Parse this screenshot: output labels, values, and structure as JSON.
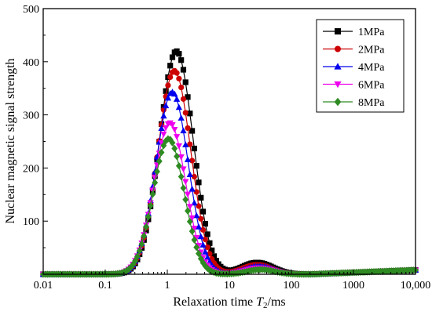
{
  "chart_data": {
    "type": "line",
    "title": "",
    "xlabel": "Relaxation time T2/ms",
    "xlabel_parts": [
      "Relaxation time ",
      "T",
      "2",
      "/ms"
    ],
    "ylabel": "Nuclear magnetic signal strength",
    "x_scale": "log",
    "xlim": [
      0.01,
      10000
    ],
    "ylim": [
      0,
      500
    ],
    "x_ticks": [
      0.01,
      0.1,
      1,
      10,
      100,
      1000,
      10000
    ],
    "x_tick_labels": [
      "0.01",
      "0.1",
      "1",
      "10",
      "100",
      "1000",
      "10,000"
    ],
    "y_ticks": [
      100,
      200,
      300,
      400,
      500
    ],
    "y_tick_labels": [
      "100",
      "200",
      "300",
      "400",
      "500"
    ],
    "grid": false,
    "legend_position": "top-right",
    "series": [
      {
        "name": "1MPa",
        "color": "#000000",
        "marker": "square",
        "peak1": {
          "amp": 420,
          "center": 1.4,
          "width": 0.27
        },
        "peak2": {
          "amp": 22,
          "center": 28,
          "width": 0.25
        }
      },
      {
        "name": "2MPa",
        "color": "#cc0000",
        "marker": "circle",
        "peak1": {
          "amp": 383,
          "center": 1.3,
          "width": 0.265
        },
        "peak2": {
          "amp": 18,
          "center": 28,
          "width": 0.24
        }
      },
      {
        "name": "4MPa",
        "color": "#0000ee",
        "marker": "triangle-up",
        "peak1": {
          "amp": 343,
          "center": 1.2,
          "width": 0.26
        },
        "peak2": {
          "amp": 15,
          "center": 30,
          "width": 0.24
        }
      },
      {
        "name": "6MPa",
        "color": "#ee00ee",
        "marker": "triangle-down",
        "peak1": {
          "amp": 285,
          "center": 1.1,
          "width": 0.255
        },
        "peak2": {
          "amp": 12,
          "center": 30,
          "width": 0.23
        }
      },
      {
        "name": "8MPa",
        "color": "#2e8b22",
        "marker": "diamond",
        "peak1": {
          "amp": 255,
          "center": 1.05,
          "width": 0.25
        },
        "peak2": {
          "amp": 9,
          "center": 32,
          "width": 0.22
        }
      }
    ],
    "tail_level_at_10000": 8
  }
}
